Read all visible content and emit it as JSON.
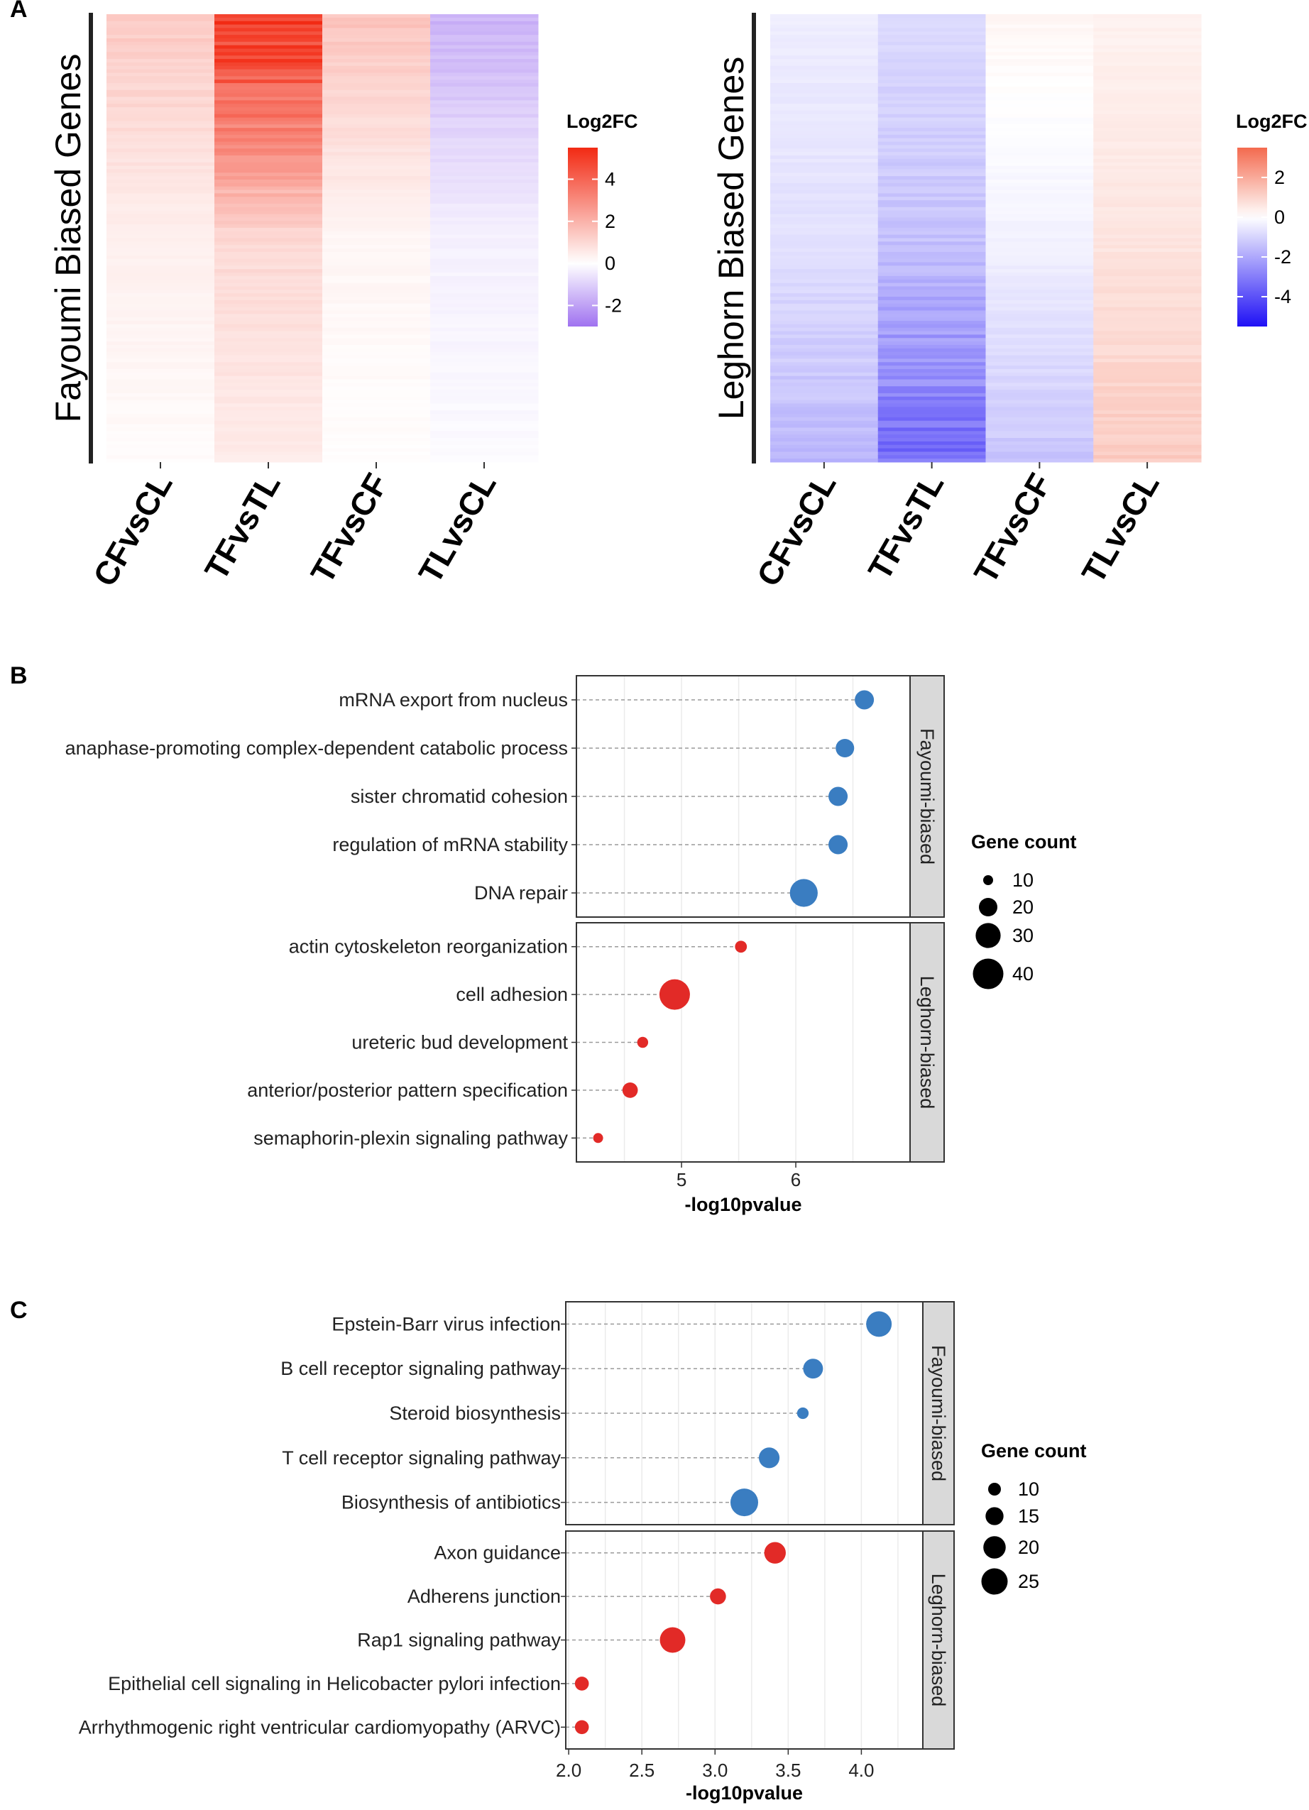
{
  "chart_data": [
    {
      "panel": "A",
      "type": "heatmap",
      "title": "Fayoumi Biased Genes",
      "columns": [
        "CFvsCL",
        "TFvsTL",
        "TFvsCF",
        "TLvsCL"
      ],
      "legend_title": "Log2FC",
      "legend_ticks": [
        4,
        2,
        0,
        -2
      ],
      "legend_range": [
        -3,
        5.5
      ],
      "colors": {
        "low": "#9f72f0",
        "mid": "#ffffff",
        "high": "#f22a13"
      },
      "approx_column_values": {
        "CFvsCL": {
          "top": 1.4,
          "mid": 0.4,
          "bottom": 0.1
        },
        "TFvsTL": {
          "top": 5.5,
          "mid": 1.0,
          "bottom": 0.5
        },
        "TFvsCF": {
          "top": 1.5,
          "mid": 0.25,
          "bottom": 0.05
        },
        "TLvsCL": {
          "top": -1.6,
          "mid": -0.3,
          "bottom": -0.1
        }
      }
    },
    {
      "panel": "A",
      "type": "heatmap",
      "title": "Leghorn Biased Genes",
      "columns": [
        "CFvsCL",
        "TFvsTL",
        "TFvsCF",
        "TLvsCL"
      ],
      "legend_title": "Log2FC",
      "legend_ticks": [
        2,
        0,
        -2,
        -4
      ],
      "legend_range": [
        -5.5,
        3.5
      ],
      "colors": {
        "low": "#1f10f5",
        "mid": "#ffffff",
        "high": "#f46a4e"
      },
      "approx_column_values": {
        "CFvsCL": {
          "top": -0.4,
          "mid": -0.7,
          "bottom": -1.6
        },
        "TFvsTL": {
          "top": -0.8,
          "mid": -1.4,
          "bottom": -3.4
        },
        "TFvsCF": {
          "top": 0.2,
          "mid": -0.3,
          "bottom": -1.3
        },
        "TLvsCL": {
          "top": 0.3,
          "mid": 0.6,
          "bottom": 1.2
        }
      }
    },
    {
      "panel": "B",
      "type": "scatter",
      "xlabel": "-log10pvalue",
      "xlim": [
        4.08,
        7.0
      ],
      "xticks": [
        5,
        6
      ],
      "size_legend_title": "Gene count",
      "size_legend": [
        10,
        20,
        30,
        40
      ],
      "facets": [
        {
          "name": "Fayoumi-biased",
          "color": "#3a7dc1",
          "terms": [
            {
              "label": "mRNA export from nucleus",
              "x": 6.6,
              "count": 21
            },
            {
              "label": "anaphase-promoting complex-dependent catabolic process",
              "x": 6.43,
              "count": 20
            },
            {
              "label": "sister chromatid cohesion",
              "x": 6.37,
              "count": 21
            },
            {
              "label": "regulation of mRNA stability",
              "x": 6.37,
              "count": 21
            },
            {
              "label": "DNA repair",
              "x": 6.07,
              "count": 35
            }
          ]
        },
        {
          "name": "Leghorn-biased",
          "color": "#e22a27",
          "terms": [
            {
              "label": "actin cytoskeleton reorganization",
              "x": 5.52,
              "count": 12
            },
            {
              "label": "cell adhesion",
              "x": 4.94,
              "count": 40
            },
            {
              "label": "ureteric bud development",
              "x": 4.66,
              "count": 11
            },
            {
              "label": "anterior/posterior pattern specification",
              "x": 4.55,
              "count": 16
            },
            {
              "label": "semaphorin-plexin signaling pathway",
              "x": 4.27,
              "count": 10
            }
          ]
        }
      ]
    },
    {
      "panel": "C",
      "type": "scatter",
      "xlabel": "-log10pvalue",
      "xlim": [
        1.98,
        4.42
      ],
      "xticks": [
        "2.0",
        "2.5",
        "3.0",
        "3.5",
        "4.0"
      ],
      "size_legend_title": "Gene count",
      "size_legend": [
        10,
        15,
        20,
        25
      ],
      "facets": [
        {
          "name": "Fayoumi-biased",
          "color": "#3a7dc1",
          "terms": [
            {
              "label": "Epstein-Barr virus infection",
              "x": 4.12,
              "count": 24
            },
            {
              "label": "B cell receptor signaling pathway",
              "x": 3.67,
              "count": 17
            },
            {
              "label": "Steroid biosynthesis",
              "x": 3.6,
              "count": 9
            },
            {
              "label": "T cell receptor signaling pathway",
              "x": 3.37,
              "count": 18
            },
            {
              "label": "Biosynthesis of antibiotics",
              "x": 3.2,
              "count": 27
            }
          ]
        },
        {
          "name": "Leghorn-biased",
          "color": "#e22a27",
          "terms": [
            {
              "label": "Axon guidance",
              "x": 3.41,
              "count": 19
            },
            {
              "label": "Adherens junction",
              "x": 3.02,
              "count": 13
            },
            {
              "label": "Rap1 signaling pathway",
              "x": 2.71,
              "count": 24
            },
            {
              "label": "Epithelial cell signaling in Helicobacter pylori infection",
              "x": 2.09,
              "count": 11
            },
            {
              "label": "Arrhythmogenic right ventricular cardiomyopathy (ARVC)",
              "x": 2.09,
              "count": 11
            }
          ]
        }
      ]
    }
  ],
  "panel_letters": [
    "A",
    "B",
    "C"
  ]
}
